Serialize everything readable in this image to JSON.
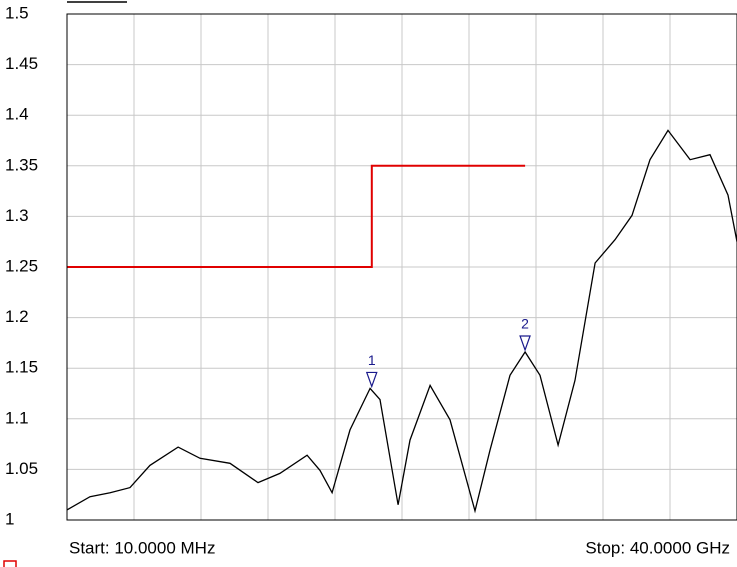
{
  "chart_data": {
    "type": "line",
    "start_label": "Start: 10.0000 MHz",
    "stop_label": "Stop: 40.0000 GHz",
    "xlim": [
      0.01,
      40
    ],
    "ylim": [
      1,
      1.5
    ],
    "yticks": [
      1,
      1.05,
      1.1,
      1.15,
      1.2,
      1.25,
      1.3,
      1.35,
      1.4,
      1.45,
      1.5
    ],
    "grid": true,
    "trace": {
      "color": "#000000",
      "x": [
        0.01,
        1.38,
        2.58,
        3.77,
        4.96,
        6.64,
        7.95,
        9.74,
        11.41,
        12.72,
        14.34,
        15.11,
        15.83,
        16.9,
        18.1,
        18.69,
        19.77,
        20.48,
        21.68,
        22.87,
        24.36,
        25.26,
        26.45,
        27.35,
        28.24,
        29.32,
        30.33,
        31.53,
        32.72,
        33.73,
        34.81,
        35.88,
        37.2,
        38.39,
        39.46,
        40
      ],
      "values": [
        1.01,
        1.023,
        1.027,
        1.032,
        1.054,
        1.072,
        1.061,
        1.056,
        1.037,
        1.046,
        1.064,
        1.049,
        1.027,
        1.089,
        1.13,
        1.119,
        1.015,
        1.079,
        1.133,
        1.099,
        1.009,
        1.069,
        1.143,
        1.166,
        1.143,
        1.074,
        1.138,
        1.254,
        1.277,
        1.301,
        1.356,
        1.385,
        1.356,
        1.361,
        1.321,
        1.275
      ]
    },
    "limit_line": {
      "color": "#e00000",
      "x": [
        0.01,
        18.2,
        18.2,
        27.35
      ],
      "values": [
        1.25,
        1.25,
        1.35,
        1.35
      ]
    },
    "markers": [
      {
        "label": "1",
        "x": 18.2,
        "value": 1.13
      },
      {
        "label": "2",
        "x": 27.35,
        "value": 1.166
      }
    ],
    "marker_color": "#1a1a8c"
  }
}
